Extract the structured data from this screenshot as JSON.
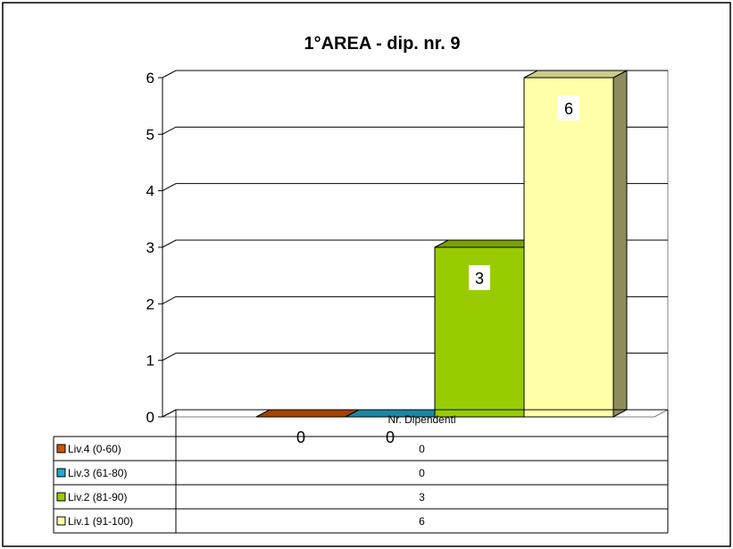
{
  "chart_data": {
    "type": "bar",
    "title": "1°AREA - dip. nr. 9",
    "category": "Nr. Dipendenti",
    "ylim": [
      0,
      6
    ],
    "yticks": [
      "0",
      "1",
      "2",
      "3",
      "4",
      "5",
      "6"
    ],
    "grid": true,
    "legend": "data-table-bottom",
    "series": [
      {
        "name": "Liv.4 (0-60)",
        "values": [
          0
        ],
        "label": "0",
        "color": "#cc5500"
      },
      {
        "name": "Liv.3 (61-80)",
        "values": [
          0
        ],
        "label": "0",
        "color": "#22aacc"
      },
      {
        "name": "Liv.2 (81-90)",
        "values": [
          3
        ],
        "label": "3",
        "color": "#99cc00"
      },
      {
        "name": "Liv.1 (91-100)",
        "values": [
          6
        ],
        "label": "6",
        "color": "#ffffaa"
      }
    ]
  }
}
